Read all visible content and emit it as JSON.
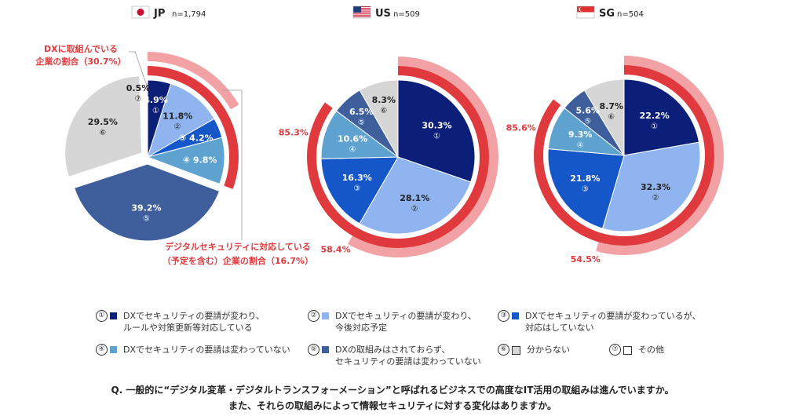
{
  "colors": {
    "c1": "#0b1e78",
    "c2": "#8fb4ef",
    "c3": "#1557c8",
    "c4": "#5ea3d0",
    "c5": "#3f5e9c",
    "c6": "#d6d6d6",
    "c7": "#ffffff",
    "dx_ring": "#e03a3e",
    "sec_ring": "#f2a2a4",
    "annotation": "#e03a3e"
  },
  "chart_data": [
    {
      "type": "pie",
      "country": "JP",
      "flag": "japan-flag",
      "n_label": "n=1,794",
      "slices": [
        {
          "id": "①",
          "value": 4.9,
          "label": "4.9%"
        },
        {
          "id": "②",
          "value": 11.8,
          "label": "11.8%"
        },
        {
          "id": "③",
          "value": 4.2,
          "label": "4.2%"
        },
        {
          "id": "④",
          "value": 9.8,
          "label": "9.8%"
        },
        {
          "id": "⑤",
          "value": 39.2,
          "label": "39.2%"
        },
        {
          "id": "⑥",
          "value": 29.5,
          "label": "29.5%"
        },
        {
          "id": "⑦",
          "value": 0.5,
          "label": "0.5%"
        }
      ],
      "dx_share": 30.7,
      "security_share": 16.7,
      "dx_annotation": [
        "DXに取組んでいる",
        "企業の割合（30.7%）"
      ],
      "security_annotation": [
        "デジタルセキュリティに対応している",
        "（予定を含む）企業の割合（16.7%）"
      ]
    },
    {
      "type": "pie",
      "country": "US",
      "flag": "usa-flag",
      "n_label": "n=509",
      "slices": [
        {
          "id": "①",
          "value": 30.3,
          "label": "30.3%"
        },
        {
          "id": "②",
          "value": 28.1,
          "label": "28.1%"
        },
        {
          "id": "③",
          "value": 16.3,
          "label": "16.3%"
        },
        {
          "id": "④",
          "value": 10.6,
          "label": "10.6%"
        },
        {
          "id": "⑤",
          "value": 6.5,
          "label": "6.5%"
        },
        {
          "id": "⑥",
          "value": 8.3,
          "label": "8.3%"
        }
      ],
      "dx_share": 85.3,
      "security_share": 58.4,
      "dx_label": "85.3%",
      "security_label": "58.4%"
    },
    {
      "type": "pie",
      "country": "SG",
      "flag": "singapore-flag",
      "n_label": "n=504",
      "slices": [
        {
          "id": "①",
          "value": 22.2,
          "label": "22.2%"
        },
        {
          "id": "②",
          "value": 32.3,
          "label": "32.3%"
        },
        {
          "id": "③",
          "value": 21.8,
          "label": "21.8%"
        },
        {
          "id": "④",
          "value": 9.3,
          "label": "9.3%"
        },
        {
          "id": "⑤",
          "value": 5.6,
          "label": "5.6%"
        },
        {
          "id": "⑥",
          "value": 8.7,
          "label": "8.7%"
        }
      ],
      "dx_share": 85.6,
      "security_share": 54.5,
      "dx_label": "85.6%",
      "security_label": "54.5%"
    }
  ],
  "legend": [
    {
      "id": "①",
      "color_key": "c1",
      "lines": [
        "DXでセキュリティの要請が変わり、",
        "ルールや対策更新等対応している"
      ]
    },
    {
      "id": "②",
      "color_key": "c2",
      "lines": [
        "DXでセキュリティの要請が変わり、",
        "今後対応予定"
      ]
    },
    {
      "id": "③",
      "color_key": "c3",
      "lines": [
        "DXでセキュリティの要請が変わっているが、",
        "対応はしていない"
      ]
    },
    {
      "id": "④",
      "color_key": "c4",
      "lines": [
        "DXでセキュリティの要請は変わっていない"
      ]
    },
    {
      "id": "⑤",
      "color_key": "c5",
      "lines": [
        "DXの取組みはされておらず、",
        "セキュリティの要請は変わっていない"
      ]
    },
    {
      "id": "⑥",
      "color_key": "c6",
      "lines": [
        "分からない"
      ]
    },
    {
      "id": "⑦",
      "color_key": "c7",
      "lines": [
        "その他"
      ]
    }
  ],
  "question": [
    "Q. 一般的に“デジタル変革・デジタルトランスフォーメーション”と呼ばれるビジネスでの高度なIT活用の取組みは進んでいますか。",
    "また、それらの取組みによって情報セキュリティに対する変化はありますか。"
  ]
}
